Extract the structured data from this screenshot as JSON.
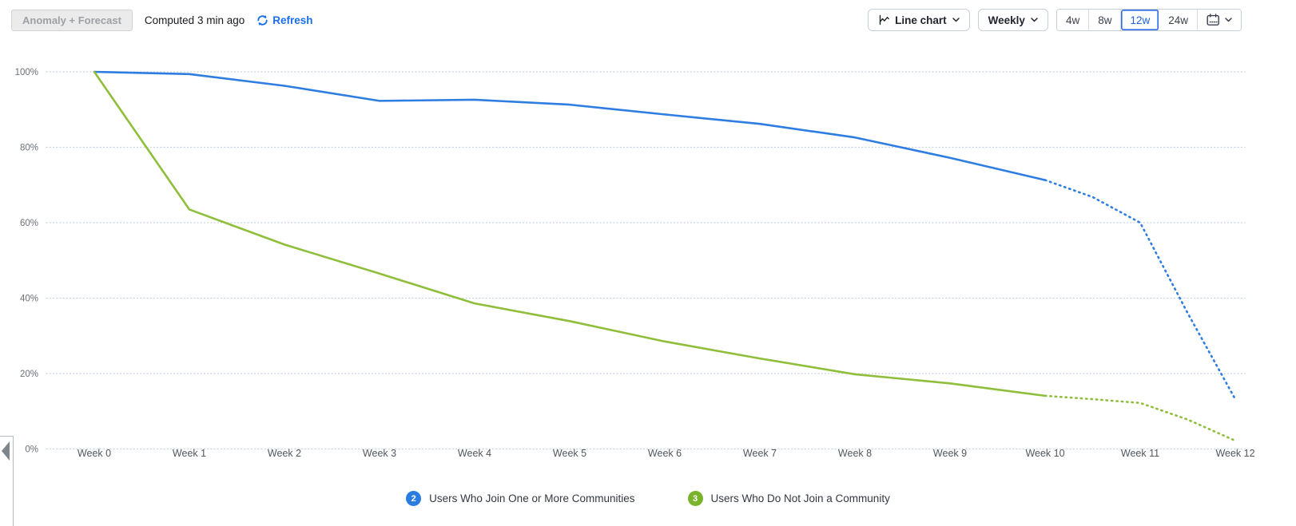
{
  "header": {
    "anomaly_button_label": "Anomaly + Forecast",
    "computed_text": "Computed 3 min ago",
    "refresh_label": "Refresh",
    "chart_type_button": "Line chart",
    "granularity_button": "Weekly",
    "range_options": [
      "4w",
      "8w",
      "12w",
      "24w"
    ],
    "selected_range": "12w"
  },
  "icons": {
    "refresh": "circular-arrows",
    "chart_type": "line-chart",
    "granularity_dropdown": "chevron-down",
    "date_range": "calendar",
    "collapse_panel": "triangle-left"
  },
  "colors": {
    "link_blue": "#1a6fe8",
    "selected_range_blue": "#2461dd",
    "series_blue": "#2e7de1",
    "series_green": "#8fbe3b",
    "badge_blue": "#2b7ce0",
    "badge_green": "#79b32c",
    "grid_dotted": "#c9d4de",
    "axis_label_gray": "#6a7076"
  },
  "chart_data": {
    "type": "line",
    "title": "",
    "x_labels": [
      "Week 0",
      "Week 1",
      "Week 2",
      "Week 3",
      "Week 4",
      "Week 5",
      "Week 6",
      "Week 7",
      "Week 8",
      "Week 9",
      "Week 10",
      "Week 11",
      "Week 12"
    ],
    "y_ticks": [
      {
        "label": "0%",
        "value": 0
      },
      {
        "label": "20%",
        "value": 20
      },
      {
        "label": "40%",
        "value": 40
      },
      {
        "label": "60%",
        "value": 60
      },
      {
        "label": "80%",
        "value": 80
      },
      {
        "label": "100%",
        "value": 100
      }
    ],
    "ylim": [
      0,
      100
    ],
    "grid": "dotted-horizontal",
    "legend_position": "bottom",
    "forecast_style": "dotted segments after Week 10",
    "series": [
      {
        "name": "Users Who Join One or More Communities",
        "badge": "2",
        "color": "#2e7de1",
        "badge_color": "#2b7ce0",
        "values": [
          100,
          99.4,
          96.3,
          92.3,
          92.6,
          91.3,
          88.7,
          86.2,
          82.6,
          77.2,
          71.3
        ],
        "forecast": [
          [
            10,
            71.3
          ],
          [
            10.5,
            66.8
          ],
          [
            11,
            60.0
          ],
          [
            11.5,
            36.0
          ],
          [
            12,
            13.2
          ]
        ]
      },
      {
        "name": "Users Who Do Not Join a Community",
        "badge": "3",
        "color": "#8fbe3b",
        "badge_color": "#79b32c",
        "values": [
          100,
          63.5,
          54.2,
          46.5,
          38.6,
          33.9,
          28.5,
          24.0,
          19.8,
          17.4,
          14.1
        ],
        "forecast": [
          [
            10,
            14.1
          ],
          [
            10.5,
            13.2
          ],
          [
            11,
            12.2
          ],
          [
            11.5,
            7.8
          ],
          [
            12,
            2.2
          ]
        ]
      }
    ]
  }
}
